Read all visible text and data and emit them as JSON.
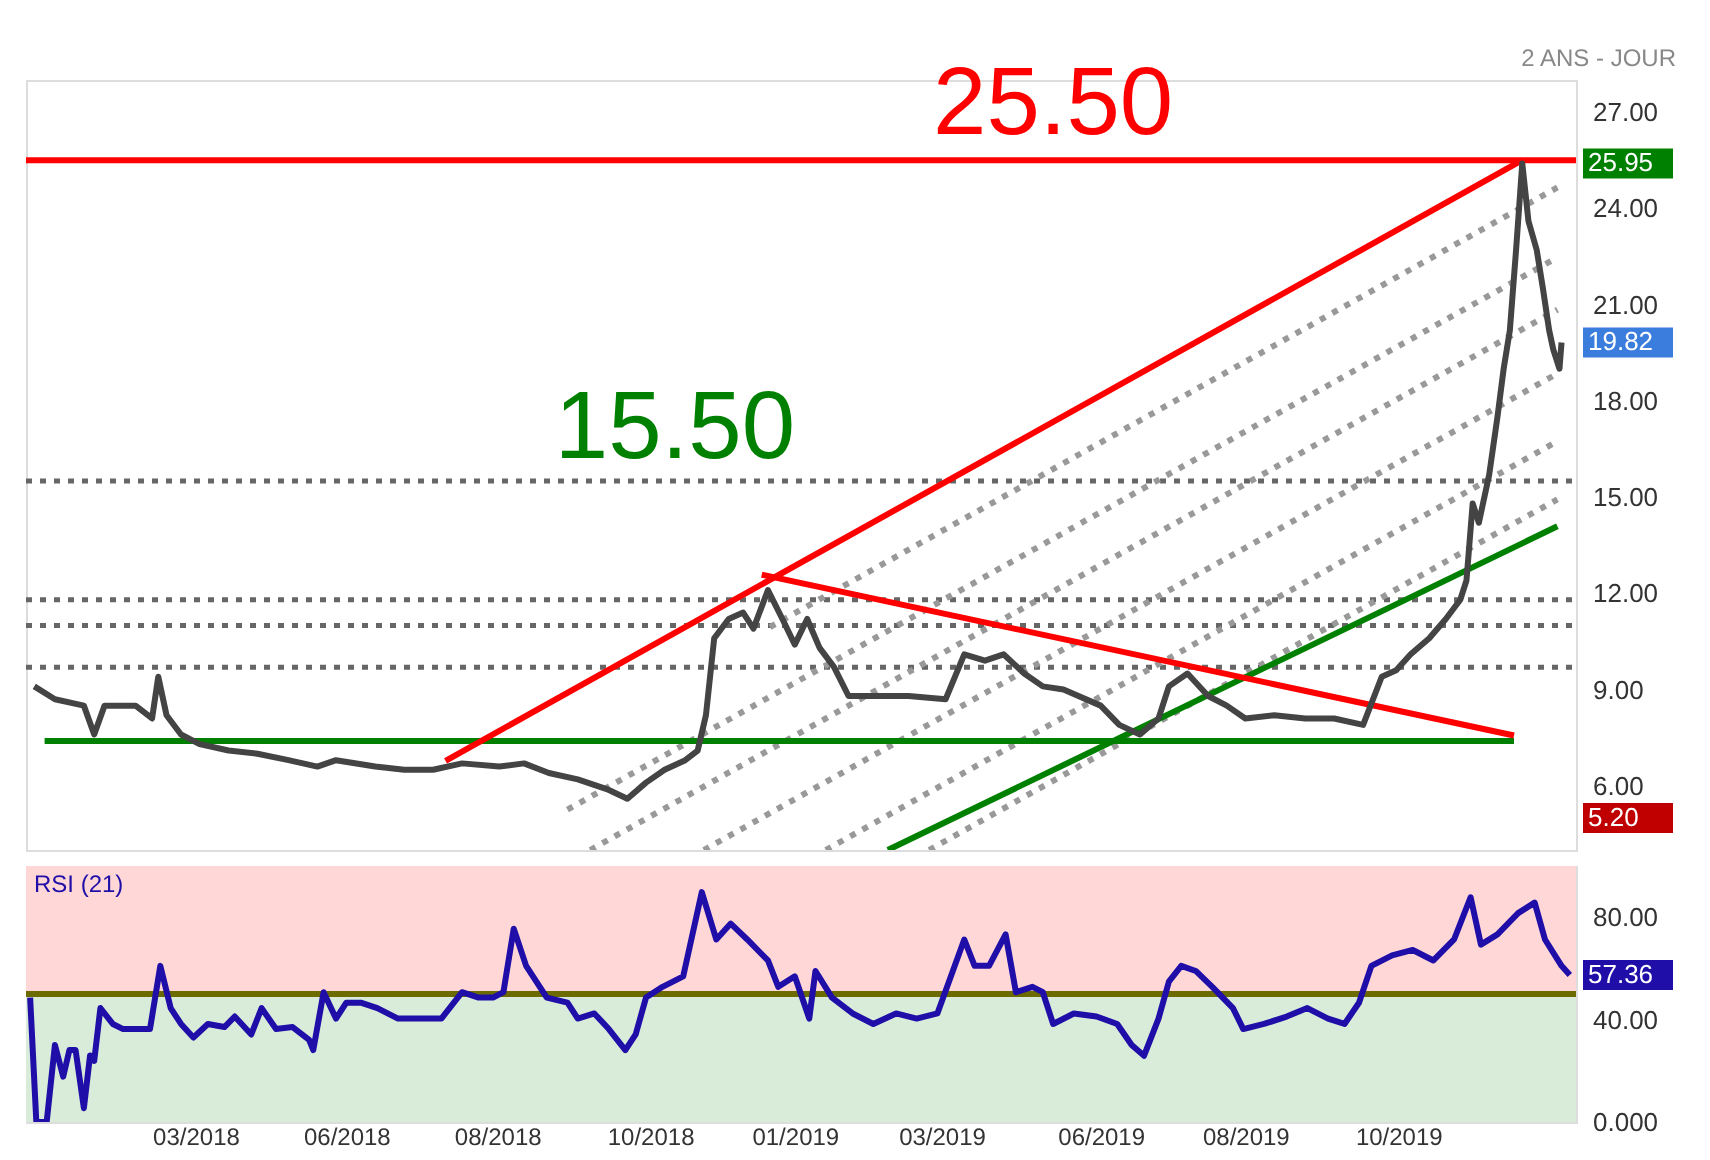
{
  "chart_data": [
    {
      "type": "line",
      "xlim": [
        "2017-12-28",
        "2020-01-17"
      ],
      "ylim": [
        4,
        28
      ],
      "yticks": [
        {
          "value": 6,
          "label": "6.00"
        },
        {
          "value": 9,
          "label": "9.00"
        },
        {
          "value": 12,
          "label": "12.00"
        },
        {
          "value": 15,
          "label": "15.00"
        },
        {
          "value": 18,
          "label": "18.00"
        },
        {
          "value": 21,
          "label": "21.00"
        },
        {
          "value": 24,
          "label": "24.00"
        },
        {
          "value": 27,
          "label": "27.00"
        }
      ],
      "tick_labels": "y",
      "ref_lines": [
        {
          "axis": "y",
          "value": 25.5,
          "color": "#ff0000",
          "line_style": "solid"
        },
        {
          "axis": "y",
          "value": 15.5,
          "color": "#666666",
          "line_style": "dotted"
        },
        {
          "axis": "y",
          "value": 11.8,
          "color": "#666666",
          "line_style": "dotted"
        },
        {
          "axis": "y",
          "value": 11.0,
          "color": "#666666",
          "line_style": "dotted"
        },
        {
          "axis": "y",
          "value": 9.7,
          "color": "#666666",
          "line_style": "dotted"
        }
      ],
      "series": [
        {
          "color": "#999999",
          "line_style": "dotted",
          "x": [
            "2018-12-23",
            "2020-01-08"
          ],
          "values": [
            10.95,
            24.65
          ]
        },
        {
          "color": "#999999",
          "line_style": "dotted",
          "x": [
            "2018-09-16",
            "2020-01-08"
          ],
          "values": [
            5.26,
            22.47
          ]
        },
        {
          "color": "#999999",
          "line_style": "dotted",
          "x": [
            "2018-09-27",
            "2020-01-08"
          ],
          "values": [
            4.0,
            20.84
          ]
        },
        {
          "color": "#999999",
          "line_style": "dotted",
          "x": [
            "2018-11-21",
            "2020-01-08"
          ],
          "values": [
            4.0,
            18.85
          ]
        },
        {
          "color": "#999999",
          "line_style": "dotted",
          "x": [
            "2019-01-19",
            "2020-01-08"
          ],
          "values": [
            4.0,
            16.74
          ]
        },
        {
          "color": "#999999",
          "line_style": "dotted",
          "x": [
            "2019-03-10",
            "2020-01-08"
          ],
          "values": [
            4.0,
            14.93
          ]
        },
        {
          "color": "#008000",
          "line_style": "solid",
          "x": [
            "2018-01-06",
            "2019-12-18"
          ],
          "values": [
            7.4,
            7.4
          ]
        },
        {
          "color": "#008000",
          "line_style": "solid",
          "x": [
            "2019-02-18",
            "2020-01-08"
          ],
          "values": [
            4.0,
            14.09
          ]
        },
        {
          "color": "#ff0000",
          "line_style": "solid",
          "x": [
            "2018-07-19",
            "2019-12-22"
          ],
          "values": [
            6.78,
            25.5
          ]
        },
        {
          "color": "#ff0000",
          "line_style": "solid",
          "x": [
            "2018-12-19",
            "2019-12-18"
          ],
          "values": [
            12.58,
            7.57
          ]
        },
        {
          "color": "#444444",
          "line_style": "solid",
          "x": [
            "2018-01-01",
            "2018-01-11",
            "2018-01-25",
            "2018-01-30",
            "2018-02-04",
            "2018-02-19",
            "2018-02-27",
            "2018-03-02",
            "2018-03-06",
            "2018-03-13",
            "2018-03-22",
            "2018-04-05",
            "2018-04-19",
            "2018-05-04",
            "2018-05-18",
            "2018-05-27",
            "2018-06-15",
            "2018-06-29",
            "2018-07-13",
            "2018-07-27",
            "2018-08-14",
            "2018-08-26",
            "2018-09-07",
            "2018-09-21",
            "2018-10-05",
            "2018-10-15",
            "2018-10-24",
            "2018-11-02",
            "2018-11-12",
            "2018-11-18",
            "2018-11-22",
            "2018-11-26",
            "2018-12-03",
            "2018-12-10",
            "2018-12-15",
            "2018-12-22",
            "2018-12-29",
            "2019-01-04",
            "2019-01-10",
            "2019-01-16",
            "2019-01-23",
            "2019-01-30",
            "2019-02-13",
            "2019-02-28",
            "2019-03-18",
            "2019-03-27",
            "2019-04-06",
            "2019-04-15",
            "2019-04-25",
            "2019-05-04",
            "2019-05-14",
            "2019-06-01",
            "2019-06-10",
            "2019-06-20",
            "2019-06-29",
            "2019-07-04",
            "2019-07-13",
            "2019-07-23",
            "2019-08-01",
            "2019-08-10",
            "2019-08-24",
            "2019-09-08",
            "2019-09-22",
            "2019-10-06",
            "2019-10-15",
            "2019-10-22",
            "2019-10-29",
            "2019-11-07",
            "2019-11-15",
            "2019-11-22",
            "2019-11-25",
            "2019-11-28",
            "2019-12-01",
            "2019-12-06",
            "2019-12-10",
            "2019-12-13",
            "2019-12-16",
            "2019-12-19",
            "2019-12-21",
            "2019-12-22",
            "2019-12-25",
            "2019-12-29",
            "2020-01-01",
            "2020-01-04",
            "2020-01-06",
            "2020-01-09",
            "2020-01-10"
          ],
          "values": [
            9.1,
            8.7,
            8.5,
            7.6,
            8.5,
            8.5,
            8.1,
            9.4,
            8.2,
            7.6,
            7.3,
            7.1,
            7.0,
            6.8,
            6.6,
            6.8,
            6.6,
            6.5,
            6.5,
            6.7,
            6.6,
            6.7,
            6.4,
            6.2,
            5.9,
            5.6,
            6.1,
            6.5,
            6.8,
            7.1,
            8.2,
            10.6,
            11.2,
            11.4,
            10.9,
            12.1,
            11.2,
            10.4,
            11.2,
            10.3,
            9.7,
            8.8,
            8.8,
            8.8,
            8.7,
            10.1,
            9.9,
            10.1,
            9.5,
            9.1,
            9.0,
            8.5,
            7.9,
            7.6,
            8.1,
            9.1,
            9.5,
            8.8,
            8.5,
            8.1,
            8.2,
            8.1,
            8.1,
            7.9,
            9.4,
            9.6,
            10.1,
            10.6,
            11.2,
            11.8,
            12.4,
            14.8,
            14.2,
            15.7,
            17.5,
            19.0,
            20.2,
            22.7,
            24.5,
            25.4,
            23.6,
            22.7,
            21.5,
            20.2,
            19.6,
            19.0,
            19.82
          ]
        }
      ],
      "annotations": [
        "2 ANS - JOUR",
        {
          "text": "25.50",
          "x": "2019-05-09",
          "y": 25.7
        },
        {
          "text": "15.50",
          "x": "2018-11-07",
          "y": 15.6
        },
        "25.95",
        "19.82",
        "5.20"
      ]
    },
    {
      "type": "line",
      "title": "RSI (21)",
      "xlim": [
        "2017-12-28",
        "2020-01-17"
      ],
      "ylim": [
        0,
        100
      ],
      "xticks": [
        {
          "value": "2018-03-20",
          "label": "03/2018"
        },
        {
          "value": "2018-06-01",
          "label": "06/2018"
        },
        {
          "value": "2018-08-13",
          "label": "08/2018"
        },
        {
          "value": "2018-10-26",
          "label": "10/2018"
        },
        {
          "value": "2019-01-04",
          "label": "01/2019"
        },
        {
          "value": "2019-03-16",
          "label": "03/2019"
        },
        {
          "value": "2019-06-01",
          "label": "06/2019"
        },
        {
          "value": "2019-08-10",
          "label": "08/2019"
        },
        {
          "value": "2019-10-23",
          "label": "10/2019"
        }
      ],
      "yticks": [
        {
          "value": 0,
          "label": "0.000"
        },
        {
          "value": 40,
          "label": "40.00"
        },
        {
          "value": 80,
          "label": "80.00"
        }
      ],
      "bands": [
        {
          "axis": "y",
          "from": 50,
          "to": 100,
          "color": "#ffd7d7"
        },
        {
          "axis": "y",
          "from": 0,
          "to": 50,
          "color": "#d9ecd9"
        }
      ],
      "ref_lines": [
        {
          "axis": "y",
          "value": 50,
          "color": "#6b6b00",
          "line_style": "solid"
        }
      ],
      "series": [
        {
          "color": "#1f0ea8",
          "line_style": "solid",
          "x": [
            "2017-12-30",
            "2018-01-02",
            "2018-01-07",
            "2018-01-11",
            "2018-01-15",
            "2018-01-18",
            "2018-01-21",
            "2018-01-25",
            "2018-01-28",
            "2018-01-30",
            "2018-02-02",
            "2018-02-08",
            "2018-02-13",
            "2018-02-21",
            "2018-02-26",
            "2018-03-03",
            "2018-03-08",
            "2018-03-13",
            "2018-03-19",
            "2018-03-26",
            "2018-04-03",
            "2018-04-08",
            "2018-04-16",
            "2018-04-21",
            "2018-04-28",
            "2018-05-06",
            "2018-05-14",
            "2018-05-16",
            "2018-05-21",
            "2018-05-27",
            "2018-06-01",
            "2018-06-08",
            "2018-06-16",
            "2018-06-26",
            "2018-07-06",
            "2018-07-17",
            "2018-07-27",
            "2018-08-04",
            "2018-08-11",
            "2018-08-16",
            "2018-08-21",
            "2018-08-27",
            "2018-09-06",
            "2018-09-16",
            "2018-09-21",
            "2018-09-29",
            "2018-10-06",
            "2018-10-14",
            "2018-10-19",
            "2018-10-24",
            "2018-11-01",
            "2018-11-11",
            "2018-11-20",
            "2018-11-27",
            "2018-12-04",
            "2018-12-12",
            "2018-12-22",
            "2018-12-27",
            "2019-01-04",
            "2019-01-11",
            "2019-01-14",
            "2019-01-22",
            "2019-02-01",
            "2019-02-11",
            "2019-02-22",
            "2019-03-04",
            "2019-03-14",
            "2019-03-27",
            "2019-04-01",
            "2019-04-08",
            "2019-04-16",
            "2019-04-21",
            "2019-04-29",
            "2019-05-04",
            "2019-05-09",
            "2019-05-19",
            "2019-05-30",
            "2019-06-09",
            "2019-06-16",
            "2019-06-22",
            "2019-06-29",
            "2019-07-04",
            "2019-07-10",
            "2019-07-17",
            "2019-07-25",
            "2019-08-04",
            "2019-08-09",
            "2019-08-19",
            "2019-08-30",
            "2019-09-09",
            "2019-09-19",
            "2019-09-27",
            "2019-10-04",
            "2019-10-10",
            "2019-10-20",
            "2019-10-30",
            "2019-11-09",
            "2019-11-19",
            "2019-11-27",
            "2019-12-02",
            "2019-12-10",
            "2019-12-20",
            "2019-12-28",
            "2020-01-02",
            "2020-01-10",
            "2020-01-14"
          ],
          "values": [
            48.6,
            0,
            0,
            30.1,
            17.7,
            28.1,
            28.1,
            5.4,
            26.0,
            23.9,
            44.5,
            38.3,
            36.3,
            36.3,
            36.3,
            61.0,
            44.5,
            38.3,
            33.0,
            38.3,
            37.1,
            41.2,
            34.2,
            44.5,
            36.3,
            37.1,
            32.1,
            28.1,
            50.7,
            40.4,
            46.6,
            46.6,
            44.5,
            40.4,
            40.4,
            40.4,
            50.7,
            48.6,
            48.6,
            50.7,
            75.5,
            61.0,
            48.6,
            46.6,
            40.4,
            42.4,
            36.3,
            28.1,
            34.2,
            48.6,
            52.8,
            56.9,
            89.8,
            71.3,
            77.5,
            71.3,
            63.1,
            52.8,
            56.9,
            40.4,
            59.0,
            48.6,
            42.4,
            38.3,
            42.4,
            40.4,
            42.4,
            71.3,
            61.0,
            61.0,
            73.3,
            50.7,
            52.8,
            50.7,
            38.3,
            42.4,
            41.2,
            38.3,
            30.1,
            25.9,
            40.4,
            54.8,
            61.0,
            59.0,
            52.8,
            44.5,
            36.3,
            38.3,
            41.2,
            44.5,
            40.4,
            38.3,
            46.6,
            61.0,
            65.1,
            67.2,
            63.1,
            71.3,
            87.8,
            69.3,
            73.3,
            81.6,
            85.7,
            71.3,
            61.0,
            57.4
          ]
        }
      ],
      "annotations": [
        "57.36"
      ]
    }
  ]
}
